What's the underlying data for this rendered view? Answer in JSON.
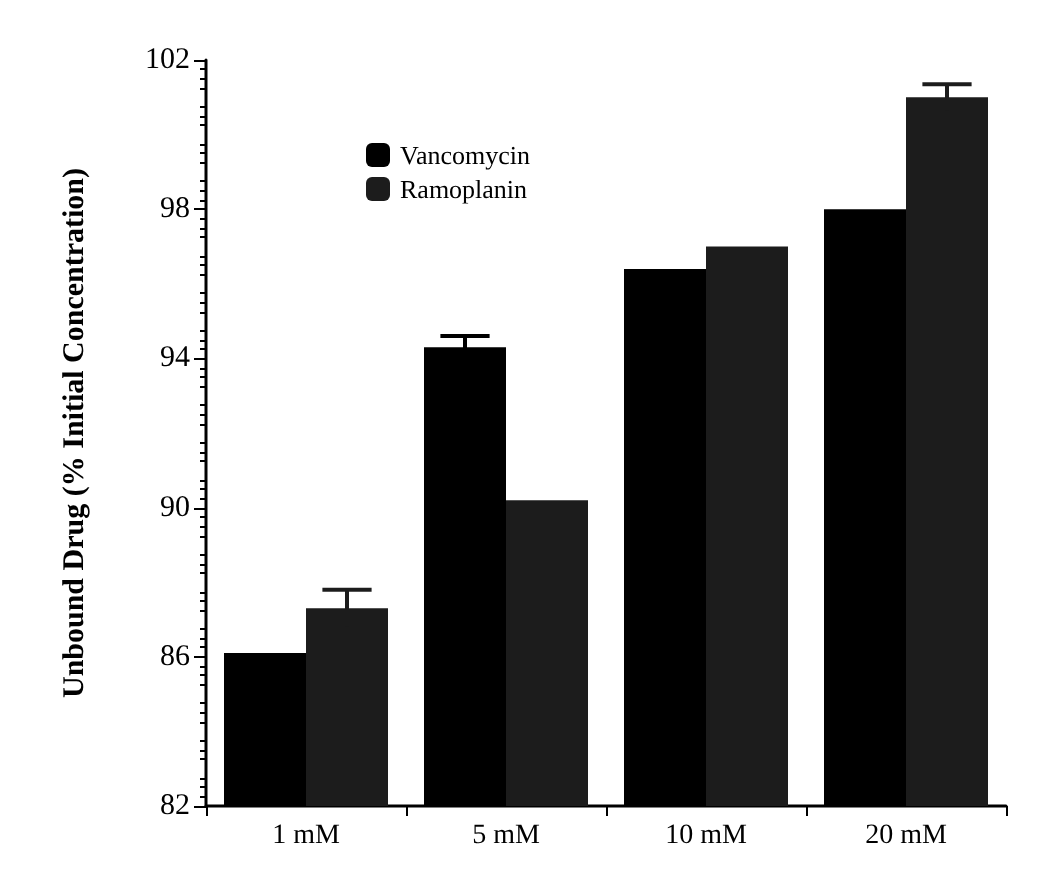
{
  "chart_data": {
    "type": "bar",
    "ylabel": "Unbound Drug (% Initial Concentration)",
    "categories": [
      "1 mM",
      "5 mM",
      "10 mM",
      "20 mM"
    ],
    "series": [
      {
        "name": "Vancomycin",
        "color": "#000000",
        "values": [
          86.1,
          94.3,
          96.4,
          98.0
        ],
        "errors": [
          null,
          0.3,
          null,
          null
        ]
      },
      {
        "name": "Ramoplanin",
        "color": "#1c1c1c",
        "values": [
          87.3,
          90.2,
          97.0,
          101.0
        ],
        "errors": [
          0.5,
          null,
          null,
          0.35
        ]
      }
    ],
    "ylim": [
      82,
      102
    ],
    "yticks": [
      82,
      86,
      90,
      94,
      98,
      102
    ],
    "grid": false,
    "legend": "top left"
  }
}
